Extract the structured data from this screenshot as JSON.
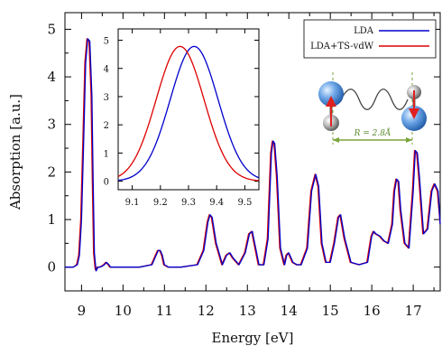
{
  "chart_data": {
    "type": "line",
    "xlabel": "Energy [eV]",
    "ylabel": "Absorption [a.u.]",
    "xlim": [
      8.6,
      17.65
    ],
    "ylim": [
      -0.5,
      5.35
    ],
    "xticks": [
      "9",
      "10",
      "11",
      "12",
      "13",
      "14",
      "15",
      "16",
      "17"
    ],
    "yticks": [
      "0",
      "1",
      "2",
      "3",
      "4",
      "5"
    ],
    "grid": false,
    "legend_position": "top-right",
    "series": [
      {
        "name": "LDA",
        "color": "#0000cc",
        "x": [
          8.6,
          8.8,
          8.9,
          8.95,
          9.0,
          9.05,
          9.1,
          9.15,
          9.2,
          9.25,
          9.28,
          9.31,
          9.35,
          9.4,
          9.45,
          9.5,
          9.55,
          9.6,
          9.65,
          9.7,
          9.8,
          10.0,
          10.4,
          10.7,
          10.8,
          10.85,
          10.9,
          10.95,
          11.0,
          11.1,
          11.4,
          11.8,
          11.95,
          12.05,
          12.1,
          12.15,
          12.25,
          12.4,
          12.5,
          12.58,
          12.65,
          12.8,
          12.95,
          13.05,
          13.12,
          13.2,
          13.28,
          13.4,
          13.5,
          13.58,
          13.62,
          13.66,
          13.72,
          13.8,
          13.9,
          13.95,
          14.0,
          14.1,
          14.2,
          14.3,
          14.45,
          14.55,
          14.65,
          14.72,
          14.8,
          14.9,
          15.0,
          15.1,
          15.2,
          15.25,
          15.35,
          15.5,
          15.7,
          15.9,
          16.0,
          16.05,
          16.1,
          16.2,
          16.3,
          16.4,
          16.5,
          16.55,
          16.6,
          16.65,
          16.7,
          16.8,
          16.9,
          17.0,
          17.05,
          17.1,
          17.15,
          17.25,
          17.35,
          17.45,
          17.52,
          17.6,
          17.65
        ],
        "y": [
          0.0,
          0.0,
          0.05,
          0.25,
          1.0,
          2.6,
          4.3,
          4.8,
          4.75,
          3.6,
          1.8,
          0.3,
          -0.08,
          0.0,
          0.0,
          0.02,
          0.05,
          0.1,
          0.06,
          0.0,
          0.0,
          0.0,
          0.0,
          0.05,
          0.25,
          0.35,
          0.35,
          0.25,
          0.05,
          0.0,
          0.0,
          0.05,
          0.35,
          0.95,
          1.1,
          1.05,
          0.5,
          0.05,
          0.25,
          0.3,
          0.2,
          0.05,
          0.3,
          0.7,
          0.75,
          0.4,
          0.05,
          0.05,
          0.6,
          2.4,
          2.65,
          2.6,
          1.9,
          0.4,
          0.05,
          0.25,
          0.3,
          0.1,
          0.05,
          0.05,
          0.4,
          1.6,
          1.95,
          1.7,
          0.5,
          0.1,
          0.1,
          0.5,
          1.05,
          1.1,
          0.6,
          0.1,
          0.05,
          0.1,
          0.65,
          0.75,
          0.7,
          0.65,
          0.55,
          0.5,
          0.9,
          1.6,
          1.85,
          1.8,
          1.2,
          0.5,
          0.4,
          1.6,
          2.45,
          2.4,
          1.9,
          0.7,
          0.8,
          1.6,
          1.75,
          1.6,
          0.9
        ]
      },
      {
        "name": "LDA+TS-vdW",
        "color": "#dd0000",
        "x": [
          8.6,
          8.8,
          8.88,
          8.93,
          8.98,
          9.03,
          9.08,
          9.13,
          9.18,
          9.23,
          9.26,
          9.29,
          9.33,
          9.38,
          9.43,
          9.48,
          9.53,
          9.58,
          9.63,
          9.68,
          9.78,
          10.0,
          10.4,
          10.68,
          10.78,
          10.83,
          10.88,
          10.93,
          10.98,
          11.08,
          11.4,
          11.78,
          11.93,
          12.03,
          12.08,
          12.13,
          12.23,
          12.38,
          12.48,
          12.56,
          12.63,
          12.78,
          12.93,
          13.03,
          13.1,
          13.18,
          13.26,
          13.38,
          13.48,
          13.56,
          13.6,
          13.64,
          13.7,
          13.78,
          13.88,
          13.93,
          13.98,
          14.08,
          14.18,
          14.28,
          14.43,
          14.53,
          14.63,
          14.7,
          14.78,
          14.88,
          14.98,
          15.08,
          15.18,
          15.23,
          15.33,
          15.48,
          15.68,
          15.88,
          15.98,
          16.03,
          16.08,
          16.18,
          16.28,
          16.38,
          16.48,
          16.53,
          16.58,
          16.63,
          16.68,
          16.78,
          16.88,
          16.98,
          17.03,
          17.08,
          17.13,
          17.23,
          17.33,
          17.43,
          17.5,
          17.58,
          17.65
        ],
        "y": [
          0.0,
          0.0,
          0.05,
          0.25,
          1.0,
          2.6,
          4.3,
          4.8,
          4.75,
          3.6,
          1.8,
          0.3,
          -0.05,
          0.0,
          0.0,
          0.02,
          0.05,
          0.1,
          0.06,
          0.0,
          0.0,
          0.0,
          0.0,
          0.05,
          0.25,
          0.35,
          0.35,
          0.25,
          0.05,
          0.0,
          0.0,
          0.05,
          0.35,
          0.95,
          1.1,
          1.05,
          0.5,
          0.05,
          0.25,
          0.3,
          0.2,
          0.05,
          0.3,
          0.7,
          0.75,
          0.4,
          0.05,
          0.05,
          0.6,
          2.4,
          2.65,
          2.6,
          1.9,
          0.4,
          0.05,
          0.25,
          0.3,
          0.1,
          0.05,
          0.05,
          0.4,
          1.6,
          1.95,
          1.7,
          0.5,
          0.1,
          0.1,
          0.5,
          1.05,
          1.1,
          0.6,
          0.1,
          0.05,
          0.1,
          0.65,
          0.75,
          0.7,
          0.65,
          0.55,
          0.5,
          0.9,
          1.6,
          1.85,
          1.8,
          1.2,
          0.5,
          0.4,
          1.6,
          2.45,
          2.4,
          1.9,
          0.7,
          0.8,
          1.6,
          1.75,
          1.6,
          0.9
        ]
      }
    ],
    "inset": {
      "xlim": [
        9.05,
        9.55
      ],
      "ylim": [
        -0.3,
        5.4
      ],
      "xticks": [
        "9.1",
        "9.2",
        "9.3",
        "9.4",
        "9.5"
      ],
      "yticks": [
        "0",
        "1",
        "2",
        "3",
        "4",
        "5"
      ],
      "series": [
        {
          "name": "LDA",
          "color": "#0000cc",
          "center": 9.32,
          "amplitude": 4.78,
          "sigma": 0.085
        },
        {
          "name": "LDA+TS-vdW",
          "color": "#dd0000",
          "center": 9.27,
          "amplitude": 4.78,
          "sigma": 0.085
        }
      ]
    },
    "annotation": {
      "separation_label": "R = 2.8Å",
      "line_color": "#7aa33a",
      "atom_color": "#4a90e2",
      "arrow_color": "#e02020"
    }
  }
}
